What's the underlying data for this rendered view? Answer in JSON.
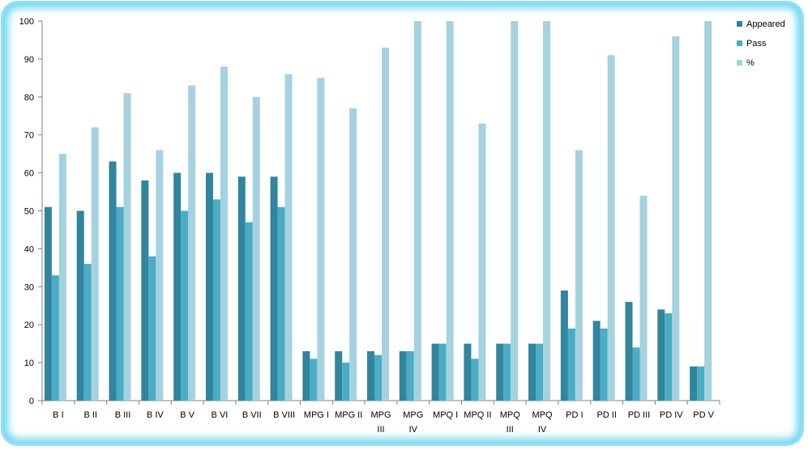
{
  "chart_data": {
    "type": "bar",
    "title": "",
    "xlabel": "",
    "ylabel": "",
    "ylim": [
      0,
      100
    ],
    "yticks": [
      0,
      10,
      20,
      30,
      40,
      50,
      60,
      70,
      80,
      90,
      100
    ],
    "grid": false,
    "legend": "top-right",
    "categories": [
      [
        "B I"
      ],
      [
        "B II"
      ],
      [
        "B III"
      ],
      [
        "B IV"
      ],
      [
        "B V"
      ],
      [
        "B VI"
      ],
      [
        "B VII"
      ],
      [
        "B VIII"
      ],
      [
        "MPG I"
      ],
      [
        "MPG II"
      ],
      [
        "MPG",
        "III"
      ],
      [
        "MPG",
        "IV"
      ],
      [
        "MPQ I"
      ],
      [
        "MPQ II"
      ],
      [
        "MPQ",
        "III"
      ],
      [
        "MPQ",
        "IV"
      ],
      [
        "PD I"
      ],
      [
        "PD II"
      ],
      [
        "PD III"
      ],
      [
        "PD IV"
      ],
      [
        "PD V"
      ]
    ],
    "series": [
      {
        "name": "Appeared",
        "color": "#31859c",
        "values": [
          51,
          50,
          63,
          58,
          60,
          60,
          59,
          59,
          13,
          13,
          13,
          13,
          15,
          15,
          15,
          15,
          29,
          21,
          26,
          24,
          9
        ]
      },
      {
        "name": "Pass",
        "color": "#4bacc6",
        "values": [
          33,
          36,
          51,
          38,
          50,
          53,
          47,
          51,
          11,
          10,
          12,
          13,
          15,
          11,
          15,
          15,
          19,
          19,
          14,
          23,
          9
        ]
      },
      {
        "name": "%",
        "color": "#a5d2df",
        "values": [
          65,
          72,
          81,
          66,
          83,
          88,
          80,
          86,
          85,
          77,
          93,
          100,
          100,
          73,
          100,
          100,
          66,
          91,
          54,
          96,
          100
        ]
      }
    ]
  }
}
